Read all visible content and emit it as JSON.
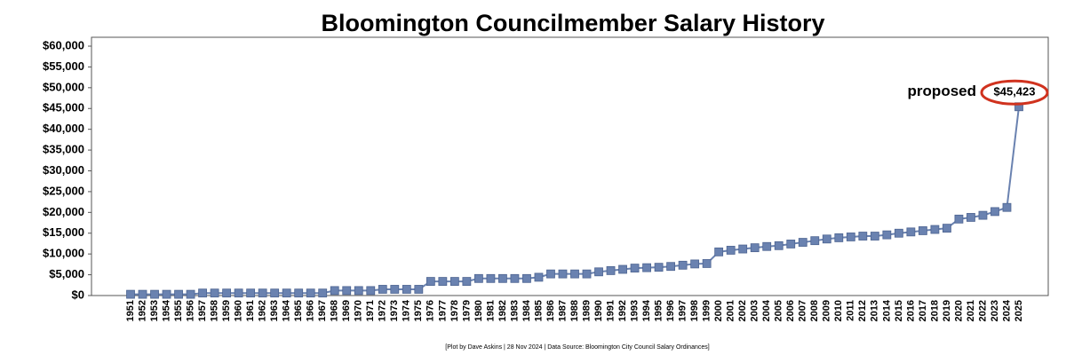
{
  "chart_data": {
    "type": "line",
    "title": "Bloomington Councilmember Salary History",
    "footnote": "[Plot by Dave Askins | 28 Nov 2024 | Data Source: Bloomington City Council Salary Ordinances]",
    "annotation": "proposed",
    "categories": [
      "1951",
      "1952",
      "1953",
      "1954",
      "1955",
      "1956",
      "1957",
      "1958",
      "1959",
      "1960",
      "1961",
      "1962",
      "1963",
      "1964",
      "1965",
      "1966",
      "1967",
      "1968",
      "1969",
      "1970",
      "1971",
      "1972",
      "1973",
      "1974",
      "1975",
      "1976",
      "1977",
      "1978",
      "1979",
      "1980",
      "1981",
      "1982",
      "1983",
      "1984",
      "1985",
      "1986",
      "1987",
      "1988",
      "1989",
      "1990",
      "1991",
      "1992",
      "1993",
      "1994",
      "1995",
      "1996",
      "1997",
      "1998",
      "1999",
      "2000",
      "2001",
      "2002",
      "2003",
      "2004",
      "2005",
      "2006",
      "2007",
      "2008",
      "2009",
      "2010",
      "2011",
      "2012",
      "2013",
      "2014",
      "2015",
      "2016",
      "2017",
      "2018",
      "2019",
      "2020",
      "2021",
      "2022",
      "2023",
      "2024",
      "2025"
    ],
    "series": [
      {
        "name": "Salary",
        "color": "#6a82b0",
        "values": [
          300,
          300,
          300,
          300,
          300,
          300,
          600,
          600,
          600,
          600,
          600,
          600,
          600,
          600,
          600,
          600,
          600,
          1200,
          1200,
          1200,
          1200,
          1500,
          1500,
          1500,
          1500,
          3400,
          3400,
          3400,
          3400,
          4100,
          4100,
          4100,
          4100,
          4100,
          4400,
          5200,
          5200,
          5200,
          5200,
          5700,
          6000,
          6300,
          6600,
          6700,
          6800,
          7000,
          7300,
          7600,
          7700,
          10500,
          10900,
          11200,
          11500,
          11800,
          12000,
          12400,
          12800,
          13200,
          13600,
          13900,
          14100,
          14300,
          14300,
          14600,
          15000,
          15300,
          15600,
          15900,
          16200,
          18400,
          18800,
          19300,
          20200,
          21200,
          45423
        ],
        "value_labels": [
          null,
          null,
          null,
          null,
          null,
          null,
          null,
          null,
          null,
          null,
          null,
          null,
          null,
          null,
          null,
          null,
          null,
          null,
          null,
          null,
          null,
          null,
          null,
          null,
          null,
          null,
          null,
          null,
          null,
          null,
          null,
          null,
          null,
          null,
          null,
          null,
          null,
          null,
          null,
          null,
          null,
          null,
          null,
          null,
          null,
          null,
          null,
          null,
          null,
          null,
          null,
          null,
          null,
          null,
          null,
          null,
          null,
          null,
          null,
          null,
          null,
          null,
          null,
          null,
          null,
          null,
          null,
          null,
          null,
          null,
          null,
          null,
          null,
          null,
          "$45,423"
        ]
      }
    ],
    "ylim": [
      0,
      60000
    ],
    "yticks": [
      {
        "value": 0,
        "label": "$0"
      },
      {
        "value": 5000,
        "label": "$5,000"
      },
      {
        "value": 10000,
        "label": "$10,000"
      },
      {
        "value": 15000,
        "label": "$15,000"
      },
      {
        "value": 20000,
        "label": "$20,000"
      },
      {
        "value": 25000,
        "label": "$25,000"
      },
      {
        "value": 30000,
        "label": "$30,000"
      },
      {
        "value": 35000,
        "label": "$35,000"
      },
      {
        "value": 40000,
        "label": "$40,000"
      },
      {
        "value": 45000,
        "label": "$45,000"
      },
      {
        "value": 50000,
        "label": "$50,000"
      },
      {
        "value": 55000,
        "label": "$55,000"
      },
      {
        "value": 60000,
        "label": "$60,000"
      }
    ],
    "highlight_color": "#d0321e"
  }
}
